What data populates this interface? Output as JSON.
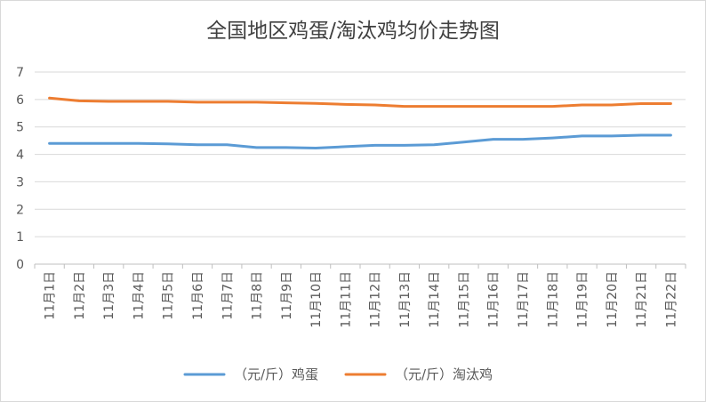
{
  "chart_data": {
    "type": "line",
    "title": "全国地区鸡蛋/淘汰鸡均价走势图",
    "categories": [
      "11月1日",
      "11月2日",
      "11月3日",
      "11月4日",
      "11月5日",
      "11月6日",
      "11月7日",
      "11月8日",
      "11月9日",
      "11月10日",
      "11月11日",
      "11月12日",
      "11月13日",
      "11月14日",
      "11月15日",
      "11月16日",
      "11月17日",
      "11月18日",
      "11月19日",
      "11月20日",
      "11月21日",
      "11月22日"
    ],
    "series": [
      {
        "name": "（元/斤）鸡蛋",
        "color": "#5b9bd5",
        "values": [
          4.4,
          4.4,
          4.4,
          4.4,
          4.38,
          4.35,
          4.35,
          4.25,
          4.25,
          4.23,
          4.28,
          4.33,
          4.33,
          4.35,
          4.45,
          4.55,
          4.55,
          4.6,
          4.67,
          4.67,
          4.7,
          4.7
        ]
      },
      {
        "name": "（元/斤）淘汰鸡",
        "color": "#ed7d31",
        "values": [
          6.05,
          5.95,
          5.93,
          5.93,
          5.93,
          5.9,
          5.9,
          5.9,
          5.88,
          5.86,
          5.82,
          5.8,
          5.75,
          5.75,
          5.75,
          5.75,
          5.75,
          5.75,
          5.8,
          5.8,
          5.85,
          5.85
        ]
      }
    ],
    "yticks": [
      "0",
      "1",
      "2",
      "3",
      "4",
      "5",
      "6",
      "7"
    ],
    "ylim": [
      0,
      7
    ],
    "grid": true,
    "legend": "bottom"
  }
}
